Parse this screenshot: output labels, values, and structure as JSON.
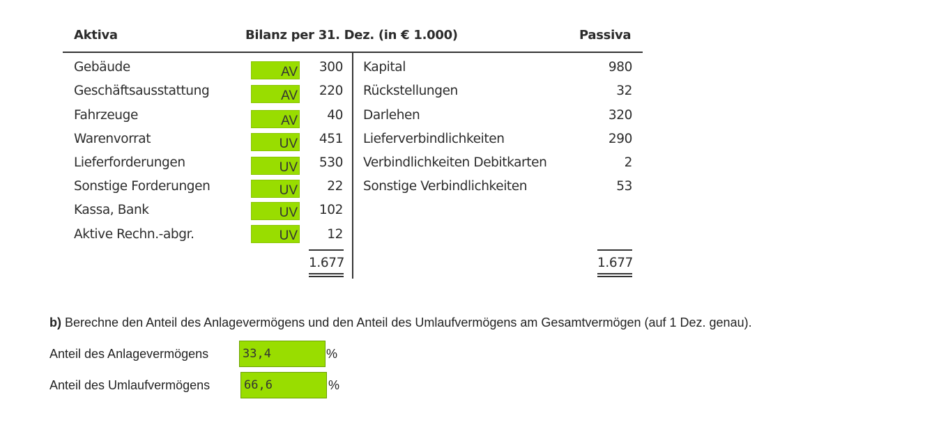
{
  "bilanz": {
    "header_left": "Aktiva",
    "header_center": "Bilanz per 31. Dez. (in € 1.000)",
    "header_right": "Passiva",
    "aktiva": [
      {
        "name": "Gebäude",
        "category": "AV",
        "value": "300"
      },
      {
        "name": "Geschäftsausstattung",
        "category": "AV",
        "value": "220"
      },
      {
        "name": "Fahrzeuge",
        "category": "AV",
        "value": "40"
      },
      {
        "name": "Warenvorrat",
        "category": "UV",
        "value": "451"
      },
      {
        "name": "Lieferforderungen",
        "category": "UV",
        "value": "530"
      },
      {
        "name": "Sonstige Forderungen",
        "category": "UV",
        "value": "22"
      },
      {
        "name": "Kassa, Bank",
        "category": "UV",
        "value": "102"
      },
      {
        "name": "Aktive Rechn.-abgr.",
        "category": "UV",
        "value": "12"
      }
    ],
    "passiva": [
      {
        "name": "Kapital",
        "value": "980"
      },
      {
        "name": "Rückstellungen",
        "value": "32"
      },
      {
        "name": "Darlehen",
        "value": "320"
      },
      {
        "name": "Lieferverbindlichkeiten",
        "value": "290"
      },
      {
        "name": "Verbindlichkeiten Debitkarten",
        "value": "2"
      },
      {
        "name": "Sonstige Verbindlichkeiten",
        "value": "53"
      }
    ],
    "sum_aktiva": "1.677",
    "sum_passiva": "1.677"
  },
  "question": {
    "prefix": "b)",
    "text": " Berechne den Anteil des Anlagevermögens und den Anteil des Umlaufvermögens am Gesamtvermögen (auf 1 Dez. genau)."
  },
  "answers": [
    {
      "label": "Anteil des Anlagevermögens",
      "value": "33,4",
      "unit": "%"
    },
    {
      "label": "Anteil des Umlaufvermögens",
      "value": "66,6",
      "unit": "%"
    }
  ],
  "colors": {
    "answer_fill": "#99dd00"
  }
}
